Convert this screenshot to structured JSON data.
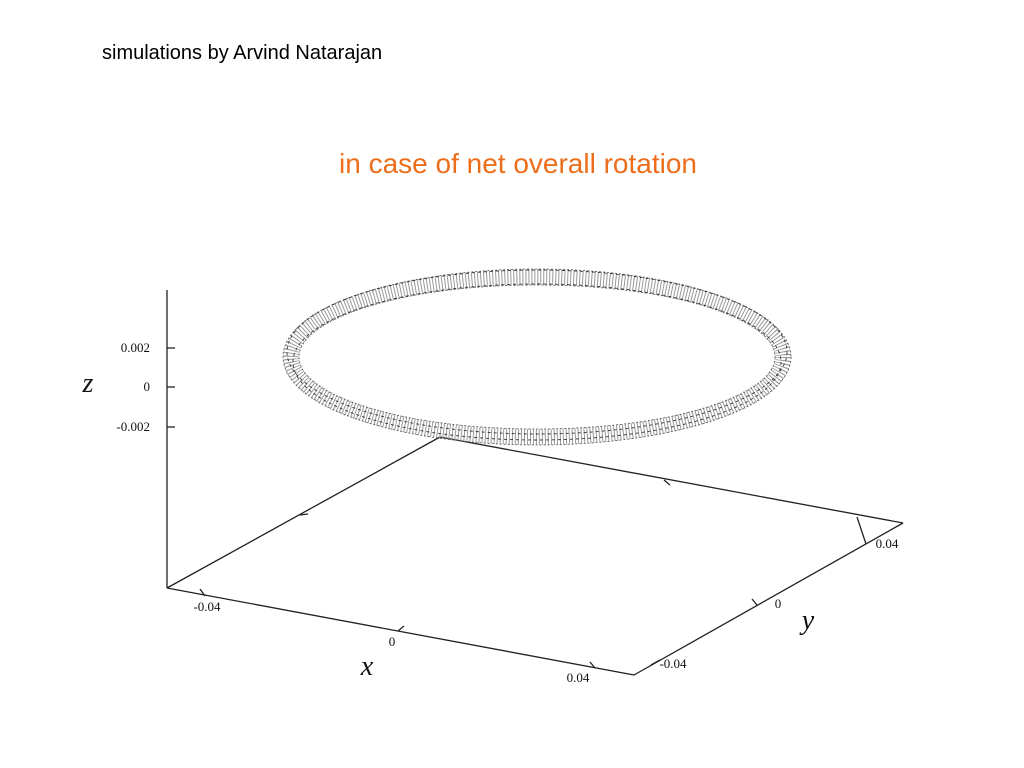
{
  "header": {
    "credit": "simulations by Arvind Natarajan",
    "title": "in case of net overall rotation"
  },
  "plot": {
    "z_axis": {
      "label": "z",
      "ticks": [
        "0.002",
        "0",
        "-0.002"
      ]
    },
    "x_axis": {
      "label": "x",
      "ticks": [
        "-0.04",
        "0",
        "0.04"
      ]
    },
    "y_axis": {
      "label": "y",
      "ticks": [
        "0.04",
        "0",
        "-0.04"
      ]
    }
  }
}
